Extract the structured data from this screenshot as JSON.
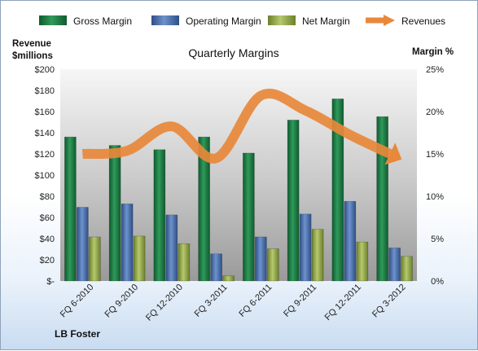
{
  "chart_data": {
    "type": "bar",
    "title": "Quarterly Margins",
    "footer": "LB Foster",
    "left_axis_title": [
      "Revenue",
      "$millions"
    ],
    "right_axis_title": "Margin %",
    "categories": [
      "FQ 6-2010",
      "FQ 9-2010",
      "FQ 12-2010",
      "FQ 3-2011",
      "FQ 6-2011",
      "FQ 9-2011",
      "FQ 12-2011",
      "FQ 3-2012"
    ],
    "y_left": {
      "min": 0,
      "max": 200,
      "step": 20,
      "ticks": [
        "$-",
        "$20",
        "$40",
        "$60",
        "$80",
        "$100",
        "$120",
        "$140",
        "$160",
        "$180",
        "$200"
      ]
    },
    "y_right": {
      "min": 0,
      "max": 25,
      "step": 5,
      "ticks": [
        "0%",
        "5%",
        "10%",
        "15%",
        "20%",
        "25%"
      ]
    },
    "series": [
      {
        "name": "Gross Margin",
        "axis": "right",
        "type": "bar",
        "color": "#1e7a45",
        "values": [
          17.0,
          16.0,
          15.5,
          17.0,
          15.1,
          19.0,
          21.5,
          19.4
        ]
      },
      {
        "name": "Operating Margin",
        "axis": "right",
        "type": "bar",
        "color": "#4a6fae",
        "values": [
          8.7,
          9.1,
          7.8,
          3.2,
          5.2,
          7.9,
          9.4,
          3.9
        ]
      },
      {
        "name": "Net Margin",
        "axis": "right",
        "type": "bar",
        "color": "#92a94e",
        "values": [
          5.2,
          5.3,
          4.4,
          0.6,
          3.8,
          6.1,
          4.6,
          2.9
        ]
      },
      {
        "name": "Revenues",
        "axis": "left",
        "type": "line",
        "color": "#e8883a",
        "values": [
          120,
          123,
          146,
          116,
          175,
          161,
          138,
          118
        ]
      }
    ],
    "legend_position": "top",
    "grid": false
  }
}
